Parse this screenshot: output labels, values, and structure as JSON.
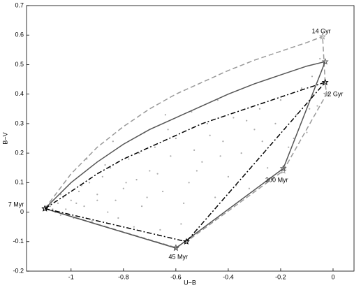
{
  "chart_data": {
    "type": "line",
    "xlabel": "U−B",
    "ylabel": "B−V",
    "xlim": [
      -1.17,
      0.08
    ],
    "ylim": [
      -0.2,
      0.7
    ],
    "xticks": [
      -1,
      -0.8,
      -0.6,
      -0.4,
      -0.2,
      0
    ],
    "yticks": [
      -0.2,
      -0.1,
      0,
      0.1,
      0.2,
      0.3,
      0.4,
      0.5,
      0.6,
      0.7
    ],
    "series": [
      {
        "color": "#999999",
        "dash": "dashed",
        "marker": "none",
        "x": [
          -1.1,
          -1.0,
          -0.9,
          -0.8,
          -0.7,
          -0.6,
          -0.5,
          -0.4,
          -0.3,
          -0.2,
          -0.1,
          -0.04
        ],
        "values": [
          0.012,
          0.13,
          0.22,
          0.29,
          0.35,
          0.4,
          0.44,
          0.48,
          0.515,
          0.545,
          0.575,
          0.595
        ]
      },
      {
        "color": "#555555",
        "dash": "solid",
        "marker": "none",
        "x": [
          -1.1,
          -1.0,
          -0.9,
          -0.8,
          -0.7,
          -0.6,
          -0.5,
          -0.4,
          -0.3,
          -0.2,
          -0.1,
          -0.03
        ],
        "values": [
          0.012,
          0.1,
          0.17,
          0.23,
          0.28,
          0.32,
          0.36,
          0.4,
          0.435,
          0.465,
          0.495,
          0.51
        ]
      },
      {
        "color": "#000000",
        "dash": "dashdot",
        "marker": "none",
        "x": [
          -1.1,
          -1.0,
          -0.9,
          -0.8,
          -0.7,
          -0.6,
          -0.5,
          -0.4,
          -0.3,
          -0.2,
          -0.1,
          -0.03
        ],
        "values": [
          0.012,
          0.07,
          0.13,
          0.18,
          0.22,
          0.26,
          0.3,
          0.33,
          0.36,
          0.39,
          0.42,
          0.44
        ]
      },
      {
        "color": "#999999",
        "dash": "dashed",
        "marker": "star",
        "x": [
          -1.1,
          -0.6,
          -0.56,
          -0.19,
          -0.025,
          -0.03,
          -0.04
        ],
        "values": [
          0.012,
          -0.12,
          -0.1,
          0.14,
          0.4,
          0.44,
          0.595
        ]
      },
      {
        "color": "#555555",
        "dash": "solid",
        "marker": "star",
        "x": [
          -1.1,
          -0.6,
          -0.19,
          -0.03
        ],
        "values": [
          0.012,
          -0.122,
          0.148,
          0.51
        ]
      },
      {
        "color": "#000000",
        "dash": "dashdot",
        "marker": "star",
        "x": [
          -1.1,
          -0.56,
          -0.03
        ],
        "values": [
          0.012,
          -0.1,
          0.44
        ]
      }
    ],
    "scatter": {
      "color": "#aaaaaa",
      "x": [
        -1.08,
        -1.06,
        -1.05,
        -1.04,
        -1.03,
        -1.02,
        -1.0,
        -0.99,
        -0.97,
        -0.95,
        -0.93,
        -0.92,
        -0.9,
        -0.88,
        -0.86,
        -0.85,
        -0.83,
        -0.8,
        -0.78,
        -0.76,
        -0.75,
        -0.73,
        -0.7,
        -0.68,
        -0.66,
        -0.65,
        -0.62,
        -0.6,
        -0.58,
        -0.55,
        -0.53,
        -0.5,
        -0.48,
        -0.45,
        -0.42,
        -0.4,
        -0.38,
        -0.35,
        -0.32,
        -0.3,
        -0.28,
        -0.25,
        -0.22,
        -0.2,
        -0.17,
        -0.14,
        -0.12,
        -0.1,
        -0.08,
        -0.06,
        -1.07,
        -1.04,
        -1.01,
        -0.98,
        -0.96,
        -0.9,
        -0.87,
        -0.82,
        -0.79,
        -0.74,
        -0.71,
        -0.67,
        -0.63,
        -0.57,
        -0.52,
        -0.47,
        -0.43,
        -0.37,
        -0.33,
        -0.27,
        -0.23,
        -0.15,
        -0.09,
        -0.05,
        -0.94,
        -0.84,
        -0.72,
        -0.64,
        -0.54,
        -0.44
      ],
      "values": [
        0.02,
        0.0,
        0.03,
        -0.01,
        0.05,
        0.01,
        0.04,
        -0.02,
        0.07,
        0.02,
        0.1,
        -0.03,
        0.06,
        0.12,
        0.0,
        0.15,
        0.04,
        0.08,
        0.18,
        -0.05,
        0.11,
        0.02,
        0.14,
        0.22,
        -0.06,
        0.07,
        0.19,
        0.25,
        -0.04,
        0.1,
        0.21,
        0.17,
        0.3,
        0.05,
        0.24,
        0.12,
        0.32,
        0.2,
        0.08,
        0.28,
        0.35,
        0.15,
        0.3,
        0.38,
        0.22,
        0.33,
        0.42,
        0.27,
        0.46,
        0.36,
        0.01,
        0.06,
        -0.01,
        0.03,
        0.09,
        0.04,
        0.16,
        -0.02,
        0.1,
        0.2,
        0.05,
        0.13,
        0.28,
        0.03,
        0.14,
        0.26,
        0.19,
        0.09,
        0.31,
        0.24,
        0.12,
        0.25,
        0.35,
        0.52,
        0.18,
        0.24,
        0.27,
        0.33,
        0.34,
        0.38
      ]
    },
    "annotations": [
      {
        "text": "7 Myr",
        "x": -1.21,
        "y": 0.025
      },
      {
        "text": "45 Myr",
        "x": -0.591,
        "y": -0.153
      },
      {
        "text": "300 Myr",
        "x": -0.215,
        "y": 0.108
      },
      {
        "text": "14 Gyr",
        "x": -0.045,
        "y": 0.612
      },
      {
        "text": "2 Gyr",
        "x": 0.009,
        "y": 0.399
      }
    ]
  }
}
